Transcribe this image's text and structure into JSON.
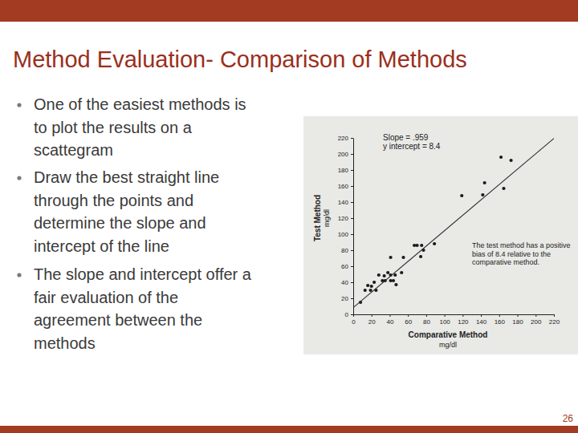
{
  "slide": {
    "title": "Method Evaluation- Comparison of Methods",
    "bullets": [
      [
        "One of the easiest methods is",
        "to plot the results on a",
        "scattegram"
      ],
      [
        "Draw the best straight line",
        "through the points and",
        "determine the slope and",
        "intercept of the line"
      ],
      [
        "The slope and intercept offer a",
        "fair evaluation of the",
        "agreement between the",
        "methods"
      ]
    ],
    "page_number": "26"
  },
  "chart_data": {
    "type": "scatter",
    "xlabel": "Comparative Method",
    "xlabel_unit": "mg/dl",
    "ylabel": "Test Method",
    "ylabel_unit": "mg/dl",
    "annotations": [
      "Slope = .959",
      "y intercept = 8.4",
      "The test method has a positive bias of 8.4 relative to the comparative method."
    ],
    "xlim": [
      0,
      220
    ],
    "ylim": [
      0,
      220
    ],
    "xticks": [
      0,
      20,
      40,
      60,
      80,
      100,
      120,
      140,
      160,
      180,
      200,
      220
    ],
    "yticks": [
      0,
      20,
      40,
      60,
      80,
      100,
      120,
      140,
      160,
      180,
      200,
      220
    ],
    "grid": false,
    "series": [
      {
        "type": "scatter",
        "color": "#1a1a1a",
        "marker": "circle",
        "x": [
          8,
          13,
          16,
          19,
          20,
          23,
          25,
          28,
          32,
          34,
          38,
          41,
          41,
          44,
          46,
          35,
          53,
          47,
          41,
          55,
          67,
          70,
          75,
          77,
          89,
          74,
          119,
          142,
          144,
          165,
          162,
          173
        ],
        "values": [
          15,
          30,
          36,
          30,
          35,
          40,
          30,
          49,
          42,
          48,
          52,
          49,
          42,
          42,
          49,
          42,
          52,
          37,
          71,
          71,
          86,
          86,
          86,
          80,
          88,
          72,
          148,
          149,
          164,
          157,
          196,
          192
        ]
      },
      {
        "type": "line",
        "color": "#2a2a2a",
        "line_style": "solid",
        "x": [
          0,
          220
        ],
        "values": [
          8.4,
          219.4
        ]
      }
    ]
  }
}
